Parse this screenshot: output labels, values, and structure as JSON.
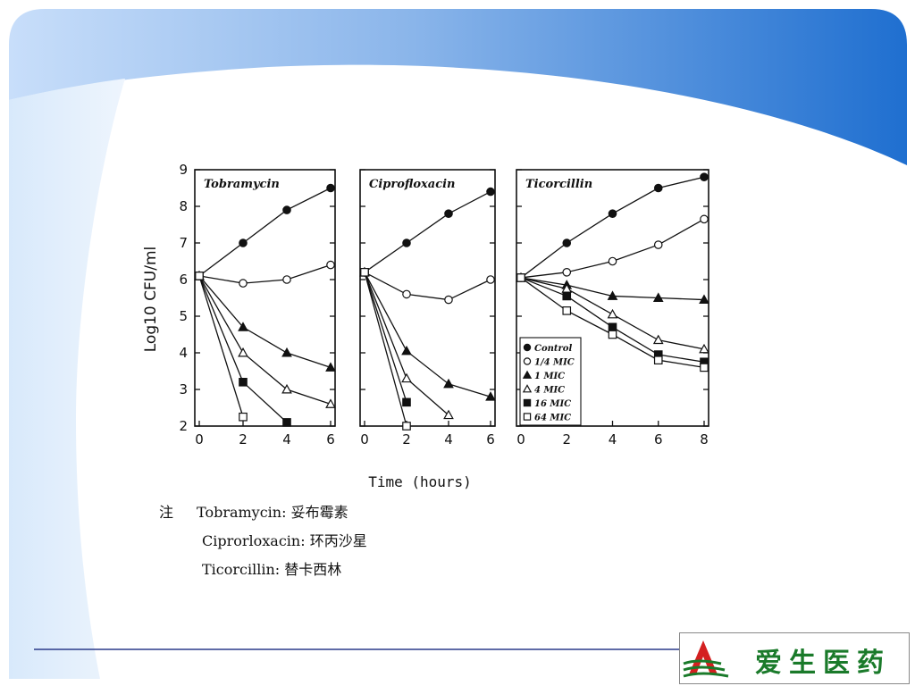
{
  "chart_data": {
    "type": "line",
    "ylabel": "Log10 CFU/ml",
    "xlabel": "Time (hours)",
    "ylim": [
      2,
      9
    ],
    "yticks": [
      2,
      3,
      4,
      5,
      6,
      7,
      8,
      9
    ],
    "marker_legend": [
      "Control",
      "1/4 MIC",
      "1 MIC",
      "4 MIC",
      "16 MIC",
      "64 MIC"
    ],
    "panels": [
      {
        "title": "Tobramycin",
        "xlim": [
          0,
          6
        ],
        "xticks": [
          0,
          2,
          4,
          6
        ],
        "series": [
          {
            "marker": "filled-circle",
            "points": [
              [
                0,
                6.1
              ],
              [
                2,
                7.0
              ],
              [
                4,
                7.9
              ],
              [
                6,
                8.5
              ]
            ]
          },
          {
            "marker": "open-circle",
            "points": [
              [
                0,
                6.1
              ],
              [
                2,
                5.9
              ],
              [
                4,
                6.0
              ],
              [
                6,
                6.4
              ]
            ]
          },
          {
            "marker": "filled-triangle",
            "points": [
              [
                0,
                6.1
              ],
              [
                2,
                4.7
              ],
              [
                4,
                4.0
              ],
              [
                6,
                3.6
              ]
            ]
          },
          {
            "marker": "open-triangle",
            "points": [
              [
                0,
                6.1
              ],
              [
                2,
                4.0
              ],
              [
                4,
                3.0
              ],
              [
                6,
                2.6
              ]
            ]
          },
          {
            "marker": "filled-square",
            "points": [
              [
                0,
                6.1
              ],
              [
                2,
                3.2
              ],
              [
                4,
                2.1
              ]
            ]
          },
          {
            "marker": "open-square",
            "points": [
              [
                0,
                6.1
              ],
              [
                2,
                2.25
              ]
            ]
          }
        ]
      },
      {
        "title": "Ciprofloxacin",
        "xlim": [
          0,
          6
        ],
        "xticks": [
          0,
          2,
          4,
          6
        ],
        "series": [
          {
            "marker": "filled-circle",
            "points": [
              [
                0,
                6.2
              ],
              [
                2,
                7.0
              ],
              [
                4,
                7.8
              ],
              [
                6,
                8.4
              ]
            ]
          },
          {
            "marker": "open-circle",
            "points": [
              [
                0,
                6.2
              ],
              [
                2,
                5.6
              ],
              [
                4,
                5.45
              ],
              [
                6,
                6.0
              ]
            ]
          },
          {
            "marker": "filled-triangle",
            "points": [
              [
                0,
                6.2
              ],
              [
                2,
                4.05
              ],
              [
                4,
                3.15
              ],
              [
                6,
                2.8
              ]
            ]
          },
          {
            "marker": "open-triangle",
            "points": [
              [
                0,
                6.2
              ],
              [
                2,
                3.3
              ],
              [
                4,
                2.3
              ]
            ]
          },
          {
            "marker": "filled-square",
            "points": [
              [
                0,
                6.2
              ],
              [
                2,
                2.65
              ]
            ]
          },
          {
            "marker": "open-square",
            "points": [
              [
                0,
                6.2
              ],
              [
                2,
                2.0
              ]
            ]
          }
        ]
      },
      {
        "title": "Ticorcillin",
        "xlim": [
          0,
          8
        ],
        "xticks": [
          0,
          2,
          4,
          6,
          8
        ],
        "series": [
          {
            "marker": "filled-circle",
            "points": [
              [
                0,
                6.05
              ],
              [
                2,
                7.0
              ],
              [
                4,
                7.8
              ],
              [
                6,
                8.5
              ],
              [
                8,
                8.8
              ]
            ]
          },
          {
            "marker": "open-circle",
            "points": [
              [
                0,
                6.05
              ],
              [
                2,
                6.2
              ],
              [
                4,
                6.5
              ],
              [
                6,
                6.95
              ],
              [
                8,
                7.65
              ]
            ]
          },
          {
            "marker": "filled-triangle",
            "points": [
              [
                0,
                6.05
              ],
              [
                2,
                5.85
              ],
              [
                4,
                5.55
              ],
              [
                6,
                5.5
              ],
              [
                8,
                5.45
              ]
            ]
          },
          {
            "marker": "open-triangle",
            "points": [
              [
                0,
                6.05
              ],
              [
                2,
                5.75
              ],
              [
                4,
                5.05
              ],
              [
                6,
                4.35
              ],
              [
                8,
                4.1
              ]
            ]
          },
          {
            "marker": "filled-square",
            "points": [
              [
                0,
                6.05
              ],
              [
                2,
                5.55
              ],
              [
                4,
                4.7
              ],
              [
                6,
                3.95
              ],
              [
                8,
                3.75
              ]
            ]
          },
          {
            "marker": "open-square",
            "points": [
              [
                0,
                6.05
              ],
              [
                2,
                5.15
              ],
              [
                4,
                4.5
              ],
              [
                6,
                3.8
              ],
              [
                8,
                3.6
              ]
            ]
          }
        ]
      }
    ]
  },
  "notes": {
    "prefix": "注",
    "lines": [
      "Tobramycin: 妥布霉素",
      "Ciprorloxacin: 环丙沙星",
      "Ticorcillin: 替卡西林"
    ]
  },
  "logo": {
    "text": "爱生医药"
  }
}
